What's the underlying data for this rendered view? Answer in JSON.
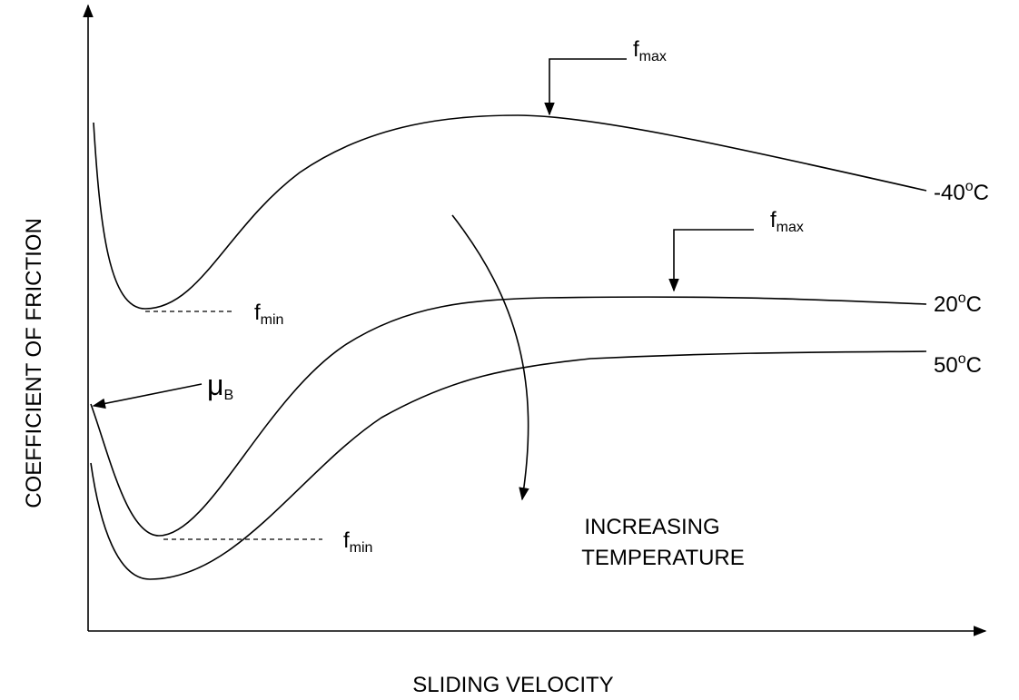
{
  "axes": {
    "y_label": "COEFFICIENT OF FRICTION",
    "x_label": "SLIDING VELOCITY"
  },
  "curves": [
    {
      "base": "-40",
      "sup": "o",
      "unit": "C"
    },
    {
      "base": "20",
      "sup": "o",
      "unit": "C"
    },
    {
      "base": "50",
      "sup": "o",
      "unit": "C"
    }
  ],
  "annotations": {
    "fmax_upper": {
      "base": "f",
      "sub": "max"
    },
    "fmax_lower": {
      "base": "f",
      "sub": "max"
    },
    "fmin_upper": {
      "base": "f",
      "sub": "min"
    },
    "fmin_lower": {
      "base": "f",
      "sub": "min"
    },
    "mu_b": {
      "base": "μ",
      "sub": "B"
    },
    "increasing": [
      "INCREASING",
      "TEMPERATURE"
    ]
  }
}
